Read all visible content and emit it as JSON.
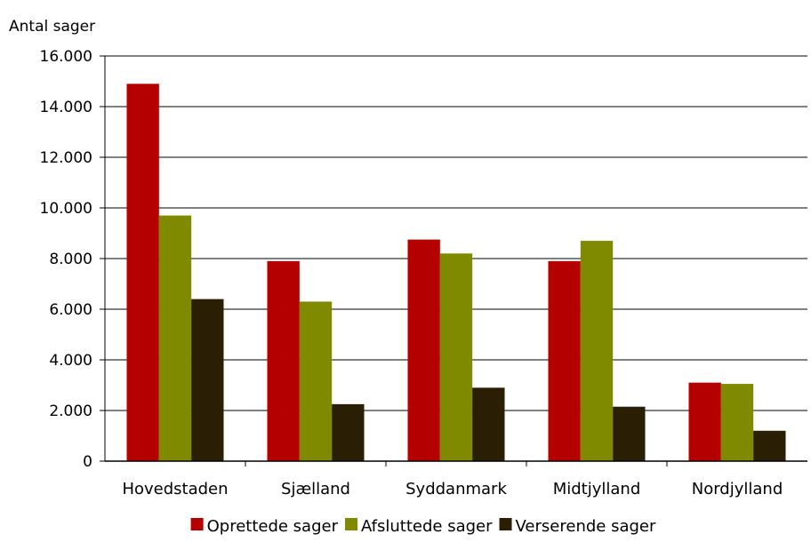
{
  "chart_data": {
    "type": "bar",
    "title": "",
    "xlabel": "",
    "ylabel": "Antal sager",
    "ylim": [
      0,
      16000
    ],
    "yticks": [
      0,
      2000,
      4000,
      6000,
      8000,
      10000,
      12000,
      14000,
      16000
    ],
    "ytick_labels": [
      "0",
      "2.000",
      "4.000",
      "6.000",
      "8.000",
      "10.000",
      "12.000",
      "14.000",
      "16.000"
    ],
    "categories": [
      "Hovedstaden",
      "Sjælland",
      "Syddanmark",
      "Midtjylland",
      "Nordjylland"
    ],
    "series": [
      {
        "name": "Oprettede sager",
        "color": "#b50000",
        "values": [
          14900,
          7900,
          8750,
          7900,
          3100
        ]
      },
      {
        "name": "Afsluttede sager",
        "color": "#7f8a00",
        "values": [
          9700,
          6300,
          8200,
          8700,
          3050
        ]
      },
      {
        "name": "Verserende sager",
        "color": "#2a1e04",
        "values": [
          6400,
          2250,
          2900,
          2150,
          1200
        ]
      }
    ],
    "grid": true,
    "legend_position": "bottom"
  }
}
